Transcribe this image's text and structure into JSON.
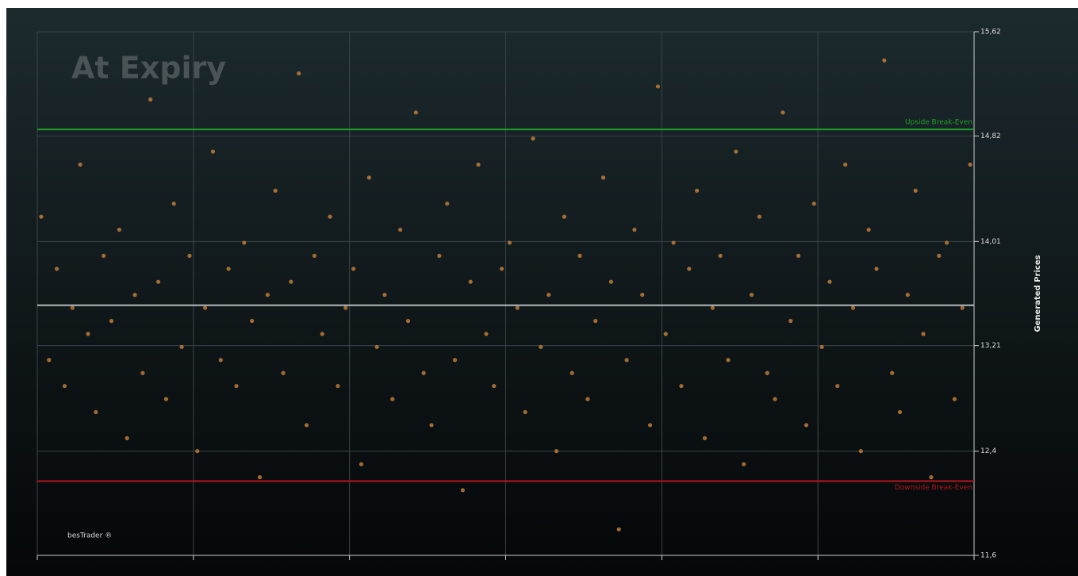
{
  "chart_data": {
    "type": "scatter",
    "title": "At Expiry",
    "watermark": "besTrader ®",
    "y_label": "Generated Prices",
    "xlim": [
      0,
      600
    ],
    "xticks": [
      0,
      100,
      200,
      300,
      400,
      500,
      600
    ],
    "ylim": [
      11.6,
      15.62
    ],
    "yticks": [
      {
        "value": 11.6,
        "label": "11,6"
      },
      {
        "value": 12.4,
        "label": "12,4"
      },
      {
        "value": 13.21,
        "label": "13,21"
      },
      {
        "value": 14.01,
        "label": "14,01"
      },
      {
        "value": 14.82,
        "label": "14,82"
      },
      {
        "value": 15.62,
        "label": "15,62"
      }
    ],
    "grid": true,
    "reference_lines": [
      {
        "name": "Upside Break-Even",
        "value": 14.87,
        "color": "#1fa12a"
      },
      {
        "name": "Downside Break-Even",
        "value": 12.17,
        "color": "#b0141c"
      },
      {
        "value": 13.52,
        "color": "#b8bcc0"
      }
    ],
    "series": [
      {
        "color": "#c9823a",
        "x": [
          2.5,
          7.5,
          12.5,
          17.5,
          22.5,
          27.5,
          32.5,
          37.5,
          42.5,
          47.5,
          52.5,
          57.5,
          62.5,
          67.5,
          72.5,
          77.5,
          82.5,
          87.5,
          92.5,
          97.5,
          102.5,
          107.5,
          112.5,
          117.5,
          122.5,
          127.5,
          132.5,
          137.5,
          142.5,
          147.5,
          152.5,
          157.5,
          162.5,
          167.5,
          172.5,
          177.5,
          182.5,
          187.5,
          192.5,
          197.5,
          202.5,
          207.5,
          212.5,
          217.5,
          222.5,
          227.5,
          232.5,
          237.5,
          242.5,
          247.5,
          252.5,
          257.5,
          262.5,
          267.5,
          272.5,
          277.5,
          282.5,
          287.5,
          292.5,
          297.5,
          302.5,
          307.5,
          312.5,
          317.5,
          322.5,
          327.5,
          332.5,
          337.5,
          342.5,
          347.5,
          352.5,
          357.5,
          362.5,
          367.5,
          372.5,
          377.5,
          382.5,
          387.5,
          392.5,
          397.5,
          402.5,
          407.5,
          412.5,
          417.5,
          422.5,
          427.5,
          432.5,
          437.5,
          442.5,
          447.5,
          452.5,
          457.5,
          462.5,
          467.5,
          472.5,
          477.5,
          482.5,
          487.5,
          492.5,
          497.5,
          502.5,
          507.5,
          512.5,
          517.5,
          522.5,
          527.5,
          532.5,
          537.5,
          542.5,
          547.5,
          552.5,
          557.5,
          562.5,
          567.5,
          572.5,
          577.5,
          582.5,
          587.5,
          592.5,
          597.5
        ],
        "values": [
          14.2,
          13.1,
          13.8,
          12.9,
          13.5,
          14.6,
          13.3,
          12.7,
          13.9,
          13.4,
          14.1,
          12.5,
          13.6,
          13.0,
          15.1,
          13.7,
          12.8,
          14.3,
          13.2,
          13.9,
          12.4,
          13.5,
          14.7,
          13.1,
          13.8,
          12.9,
          14.0,
          13.4,
          12.2,
          13.6,
          14.4,
          13.0,
          13.7,
          15.3,
          12.6,
          13.9,
          13.3,
          14.2,
          12.9,
          13.5,
          13.8,
          12.3,
          14.5,
          13.2,
          13.6,
          12.8,
          14.1,
          13.4,
          15.0,
          13.0,
          12.6,
          13.9,
          14.3,
          13.1,
          12.1,
          13.7,
          14.6,
          13.3,
          12.9,
          13.8,
          14.0,
          13.5,
          12.7,
          14.8,
          13.2,
          13.6,
          12.4,
          14.2,
          13.0,
          13.9,
          12.8,
          13.4,
          14.5,
          13.7,
          11.8,
          13.1,
          14.1,
          13.6,
          12.6,
          15.2,
          13.3,
          14.0,
          12.9,
          13.8,
          14.4,
          12.5,
          13.5,
          13.9,
          13.1,
          14.7,
          12.3,
          13.6,
          14.2,
          13.0,
          12.8,
          15.0,
          13.4,
          13.9,
          12.6,
          14.3,
          13.2,
          13.7,
          12.9,
          14.6,
          13.5,
          12.4,
          14.1,
          13.8,
          15.4,
          13.0,
          12.7,
          13.6,
          14.4,
          13.3,
          12.2,
          13.9,
          14.0,
          12.8,
          13.5,
          14.6
        ]
      }
    ]
  }
}
